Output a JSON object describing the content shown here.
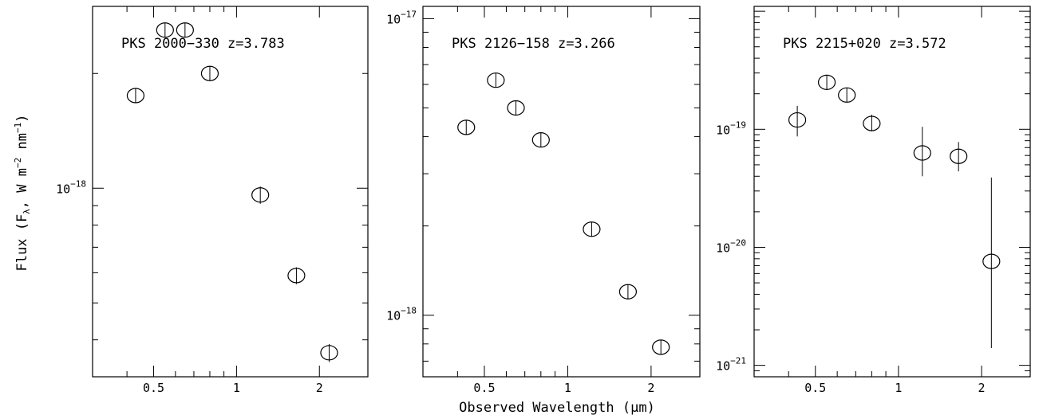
{
  "figure": {
    "xlabel": "Observed Wavelength (μm)",
    "ylabel_parts": [
      "Flux (F",
      "λ",
      ", W m",
      "−2",
      " nm",
      "−1",
      ")"
    ],
    "background": "#ffffff",
    "ink": "#000000"
  },
  "chart_data": [
    {
      "type": "scatter",
      "title": "PKS 2000−330  z=3.783",
      "xscale": "log",
      "yscale": "log",
      "xlim": [
        0.3,
        3.0
      ],
      "ylim": [
        3.2e-19,
        3e-18
      ],
      "x_ticks": [
        0.5,
        1,
        2
      ],
      "x_tick_labels": [
        "0.5",
        "1",
        "2"
      ],
      "y_tick_labels": [
        {
          "value": 1e-18,
          "mantissa": "10",
          "exponent": "−18"
        }
      ],
      "marker": "open-circle",
      "x": [
        0.43,
        0.55,
        0.65,
        0.8,
        1.22,
        1.65,
        2.17
      ],
      "y": [
        1.75e-18,
        2.6e-18,
        2.6e-18,
        2e-18,
        9.6e-19,
        5.9e-19,
        3.7e-19
      ],
      "yerr_low": [
        1.68e-18,
        2.52e-18,
        2.52e-18,
        1.93e-18,
        9.1e-19,
        5.6e-19,
        3.5e-19
      ],
      "yerr_high": [
        1.82e-18,
        2.68e-18,
        2.68e-18,
        2.07e-18,
        1.01e-18,
        6.2e-19,
        3.9e-19
      ]
    },
    {
      "type": "scatter",
      "title": "PKS 2126−158  z=3.266",
      "xscale": "log",
      "yscale": "log",
      "xlim": [
        0.3,
        3.0
      ],
      "ylim": [
        6.2e-19,
        1.1e-17
      ],
      "x_ticks": [
        0.5,
        1,
        2
      ],
      "x_tick_labels": [
        "0.5",
        "1",
        "2"
      ],
      "y_tick_labels": [
        {
          "value": 1e-17,
          "mantissa": "10",
          "exponent": "−17"
        },
        {
          "value": 1e-18,
          "mantissa": "10",
          "exponent": "−18"
        }
      ],
      "marker": "open-circle",
      "x": [
        0.43,
        0.55,
        0.65,
        0.8,
        1.22,
        1.65,
        2.17
      ],
      "y": [
        4.3e-18,
        6.2e-18,
        5e-18,
        3.9e-18,
        1.95e-18,
        1.2e-18,
        7.8e-19
      ],
      "yerr_low": [
        4.1e-18,
        5.9e-18,
        4.75e-18,
        3.7e-18,
        1.85e-18,
        1.13e-18,
        7.4e-19
      ],
      "yerr_high": [
        4.5e-18,
        6.5e-18,
        5.25e-18,
        4.1e-18,
        2.05e-18,
        1.27e-18,
        8.2e-19
      ]
    },
    {
      "type": "scatter",
      "title": "PKS 2215+020  z=3.572",
      "xscale": "log",
      "yscale": "log",
      "xlim": [
        0.3,
        3.0
      ],
      "ylim": [
        8e-22,
        1.1e-18
      ],
      "x_ticks": [
        0.5,
        1,
        2
      ],
      "x_tick_labels": [
        "0.5",
        "1",
        "2"
      ],
      "y_tick_labels": [
        {
          "value": 1e-19,
          "mantissa": "10",
          "exponent": "−19"
        },
        {
          "value": 1e-20,
          "mantissa": "10",
          "exponent": "−20"
        },
        {
          "value": 1e-21,
          "mantissa": "10",
          "exponent": "−21"
        }
      ],
      "marker": "open-circle",
      "x": [
        0.43,
        0.55,
        0.65,
        0.8,
        1.22,
        1.65,
        2.17
      ],
      "y": [
        1.2e-19,
        2.5e-19,
        1.95e-19,
        1.12e-19,
        6.3e-20,
        5.9e-20,
        7.6e-21
      ],
      "yerr_low": [
        8.7e-20,
        2.35e-19,
        1.83e-19,
        9.6e-20,
        4e-20,
        4.4e-20,
        1.4e-21
      ],
      "yerr_high": [
        1.58e-19,
        2.65e-19,
        2.07e-19,
        1.33e-19,
        1.05e-19,
        7.8e-20,
        3.9e-20
      ]
    }
  ]
}
